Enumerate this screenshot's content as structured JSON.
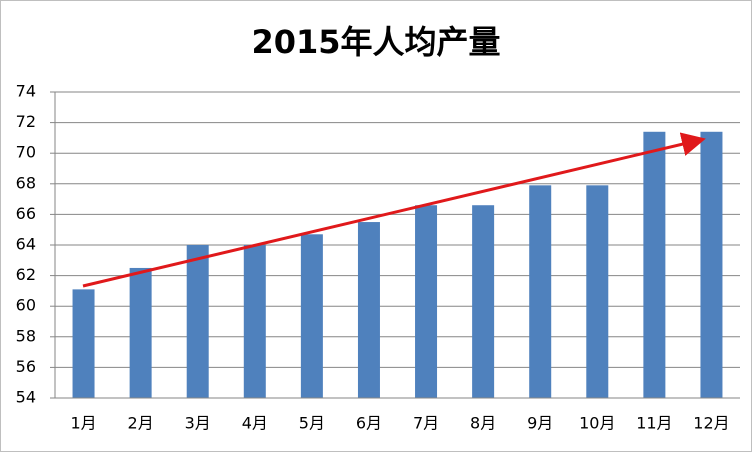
{
  "chart_data": {
    "type": "bar",
    "title": "2015年人均产量",
    "categories": [
      "1月",
      "2月",
      "3月",
      "4月",
      "5月",
      "6月",
      "7月",
      "8月",
      "9月",
      "10月",
      "11月",
      "12月"
    ],
    "values": [
      61.1,
      62.5,
      64.0,
      64.0,
      64.7,
      65.5,
      66.6,
      66.6,
      67.9,
      67.9,
      71.4,
      71.4
    ],
    "color": "#4f81bd",
    "ylim": [
      54,
      74
    ],
    "yticks": [
      54,
      56,
      58,
      60,
      62,
      64,
      66,
      68,
      70,
      72,
      74
    ],
    "grid": true
  }
}
